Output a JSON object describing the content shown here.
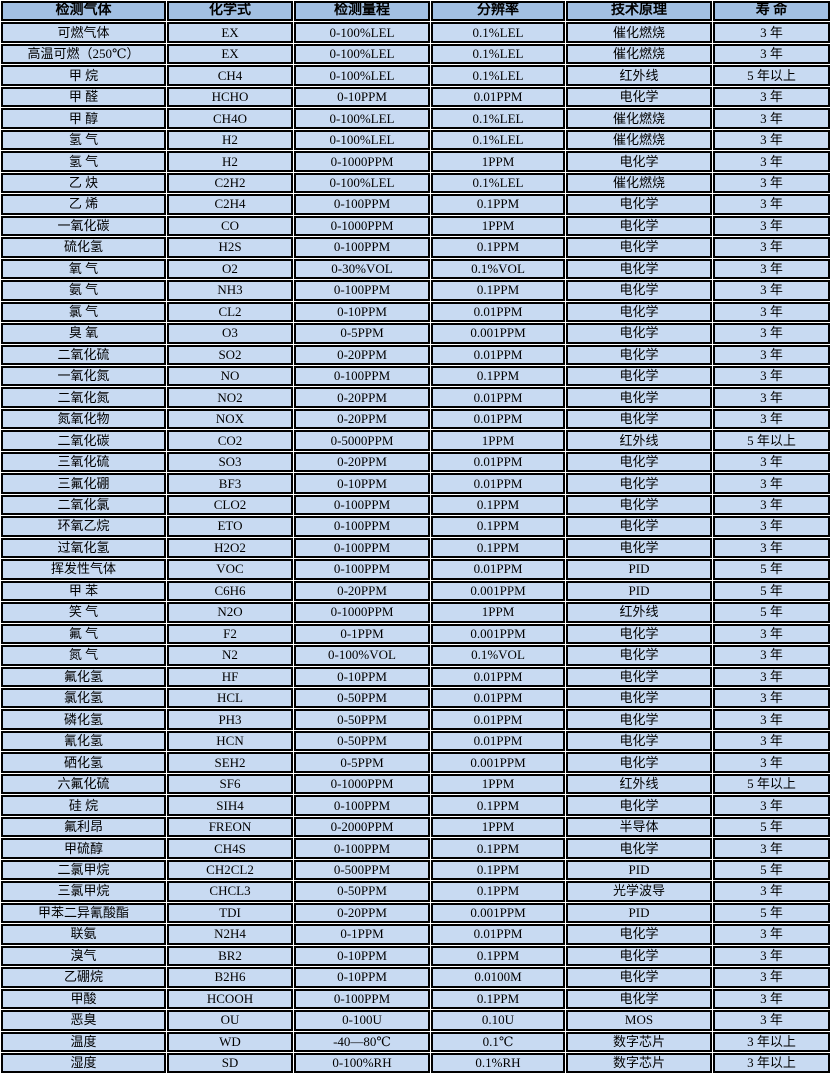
{
  "colors": {
    "header_bg": "#a2c0e3",
    "row_bg": "#c8daf2",
    "border": "#000000",
    "grid_line": "#ffffff",
    "text": "#000000"
  },
  "table": {
    "columns": [
      "检测气体",
      "化学式",
      "检测量程",
      "分辨率",
      "技术原理",
      "寿 命"
    ],
    "rows": [
      [
        "可燃气体",
        "EX",
        "0-100%LEL",
        "0.1%LEL",
        "催化燃烧",
        "3 年"
      ],
      [
        "高温可燃（250℃）",
        "EX",
        "0-100%LEL",
        "0.1%LEL",
        "催化燃烧",
        "3 年"
      ],
      [
        "甲 烷",
        "CH4",
        "0-100%LEL",
        "0.1%LEL",
        "红外线",
        "5 年以上"
      ],
      [
        "甲 醛",
        "HCHO",
        "0-10PPM",
        "0.01PPM",
        "电化学",
        "3 年"
      ],
      [
        "甲 醇",
        "CH4O",
        "0-100%LEL",
        "0.1%LEL",
        "催化燃烧",
        "3 年"
      ],
      [
        "氢 气",
        "H2",
        "0-100%LEL",
        "0.1%LEL",
        "催化燃烧",
        "3 年"
      ],
      [
        "氢 气",
        "H2",
        "0-1000PPM",
        "1PPM",
        "电化学",
        "3 年"
      ],
      [
        "乙 炔",
        "C2H2",
        "0-100%LEL",
        "0.1%LEL",
        "催化燃烧",
        "3 年"
      ],
      [
        "乙 烯",
        "C2H4",
        "0-100PPM",
        "0.1PPM",
        "电化学",
        "3 年"
      ],
      [
        "一氧化碳",
        "CO",
        "0-1000PPM",
        "1PPM",
        "电化学",
        "3 年"
      ],
      [
        "硫化氢",
        "H2S",
        "0-100PPM",
        "0.1PPM",
        "电化学",
        "3 年"
      ],
      [
        "氧 气",
        "O2",
        "0-30%VOL",
        "0.1%VOL",
        "电化学",
        "3 年"
      ],
      [
        "氨 气",
        "NH3",
        "0-100PPM",
        "0.1PPM",
        "电化学",
        "3 年"
      ],
      [
        "氯 气",
        "CL2",
        "0-10PPM",
        "0.01PPM",
        "电化学",
        "3 年"
      ],
      [
        "臭 氧",
        "O3",
        "0-5PPM",
        "0.001PPM",
        "电化学",
        "3 年"
      ],
      [
        "二氧化硫",
        "SO2",
        "0-20PPM",
        "0.01PPM",
        "电化学",
        "3 年"
      ],
      [
        "一氧化氮",
        "NO",
        "0-100PPM",
        "0.1PPM",
        "电化学",
        "3 年"
      ],
      [
        "二氧化氮",
        "NO2",
        "0-20PPM",
        "0.01PPM",
        "电化学",
        "3 年"
      ],
      [
        "氮氧化物",
        "NOX",
        "0-20PPM",
        "0.01PPM",
        "电化学",
        "3 年"
      ],
      [
        "二氧化碳",
        "CO2",
        "0-5000PPM",
        "1PPM",
        "红外线",
        "5 年以上"
      ],
      [
        "三氧化硫",
        "SO3",
        "0-20PPM",
        "0.01PPM",
        "电化学",
        "3 年"
      ],
      [
        "三氟化硼",
        "BF3",
        "0-10PPM",
        "0.01PPM",
        "电化学",
        "3 年"
      ],
      [
        "二氧化氯",
        "CLO2",
        "0-100PPM",
        "0.1PPM",
        "电化学",
        "3 年"
      ],
      [
        "环氧乙烷",
        "ETO",
        "0-100PPM",
        "0.1PPM",
        "电化学",
        "3 年"
      ],
      [
        "过氧化氢",
        "H2O2",
        "0-100PPM",
        "0.1PPM",
        "电化学",
        "3 年"
      ],
      [
        "挥发性气体",
        "VOC",
        "0-100PPM",
        "0.01PPM",
        "PID",
        "5 年"
      ],
      [
        "甲 苯",
        "C6H6",
        "0-20PPM",
        "0.001PPM",
        "PID",
        "5 年"
      ],
      [
        "笑 气",
        "N2O",
        "0-1000PPM",
        "1PPM",
        "红外线",
        "5 年"
      ],
      [
        "氟 气",
        "F2",
        "0-1PPM",
        "0.001PPM",
        "电化学",
        "3 年"
      ],
      [
        "氮 气",
        "N2",
        "0-100%VOL",
        "0.1%VOL",
        "电化学",
        "3 年"
      ],
      [
        "氟化氢",
        "HF",
        "0-10PPM",
        "0.01PPM",
        "电化学",
        "3 年"
      ],
      [
        "氯化氢",
        "HCL",
        "0-50PPM",
        "0.01PPM",
        "电化学",
        "3 年"
      ],
      [
        "磷化氢",
        "PH3",
        "0-50PPM",
        "0.01PPM",
        "电化学",
        "3 年"
      ],
      [
        "氰化氢",
        "HCN",
        "0-50PPM",
        "0.01PPM",
        "电化学",
        "3 年"
      ],
      [
        "硒化氢",
        "SEH2",
        "0-5PPM",
        "0.001PPM",
        "电化学",
        "3 年"
      ],
      [
        "六氟化硫",
        "SF6",
        "0-1000PPM",
        "1PPM",
        "红外线",
        "5 年以上"
      ],
      [
        "硅 烷",
        "SIH4",
        "0-100PPM",
        "0.1PPM",
        "电化学",
        "3 年"
      ],
      [
        "氟利昂",
        "FREON",
        "0-2000PPM",
        "1PPM",
        "半导体",
        "5 年"
      ],
      [
        "甲硫醇",
        "CH4S",
        "0-100PPM",
        "0.1PPM",
        "电化学",
        "3 年"
      ],
      [
        "二氯甲烷",
        "CH2CL2",
        "0-500PPM",
        "0.1PPM",
        "PID",
        "5 年"
      ],
      [
        "三氯甲烷",
        "CHCL3",
        "0-50PPM",
        "0.1PPM",
        "光学波导",
        "3 年"
      ],
      [
        "甲苯二异氰酸酯",
        "TDI",
        "0-20PPM",
        "0.001PPM",
        "PID",
        "5 年"
      ],
      [
        "联氨",
        "N2H4",
        "0-1PPM",
        "0.01PPM",
        "电化学",
        "3 年"
      ],
      [
        "溴气",
        "BR2",
        "0-10PPM",
        "0.1PPM",
        "电化学",
        "3 年"
      ],
      [
        "乙硼烷",
        "B2H6",
        "0-10PPM",
        "0.0100M",
        "电化学",
        "3 年"
      ],
      [
        "甲酸",
        "HCOOH",
        "0-100PPM",
        "0.1PPM",
        "电化学",
        "3 年"
      ],
      [
        "恶臭",
        "OU",
        "0-100U",
        "0.10U",
        "MOS",
        "3 年"
      ],
      [
        "温度",
        "WD",
        "-40—80℃",
        "0.1℃",
        "数字芯片",
        "3 年以上"
      ],
      [
        "湿度",
        "SD",
        "0-100%RH",
        "0.1%RH",
        "数字芯片",
        "3 年以上"
      ]
    ]
  }
}
